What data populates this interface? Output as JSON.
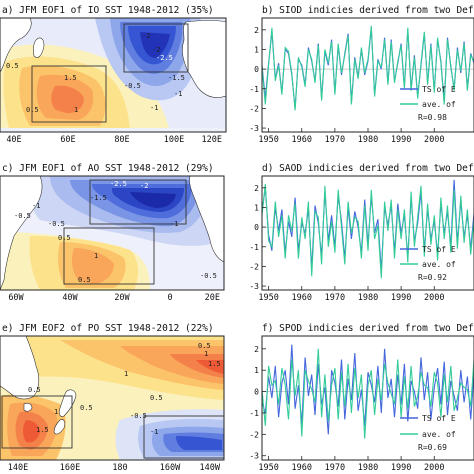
{
  "panels": [
    {
      "map_title": "a) JFM EOF1 of IO SST 1948-2012 (35%)",
      "map_xticks": [
        "40E",
        "60E",
        "80E",
        "100E",
        "120E"
      ],
      "map_labels": [
        "-2",
        "-2",
        "-2.5",
        "-1.5",
        "-1",
        "-1",
        "-0.5",
        "0.5",
        "1.5",
        "1",
        "0.5"
      ],
      "ts_title": "b) SIOD indicies derived from two Defs.",
      "legend": [
        "TS of E",
        "ave. of"
      ],
      "r_text": "R=0.98",
      "colors": [
        "#4466dd",
        "#33cc99"
      ]
    },
    {
      "map_title": "c) JFM EOF1 of AO SST 1948-2012 (29%)",
      "map_xticks": [
        "60W",
        "40W",
        "20W",
        "0",
        "20E"
      ],
      "map_labels": [
        "-2.5",
        "-2",
        "-1.5",
        "-1",
        "-0.5",
        "-0.5",
        "0.5",
        "1",
        "0.5",
        "-0.5",
        "-1"
      ],
      "ts_title": "d) SAOD indicies derived from two Defs.",
      "legend": [
        "TS of E",
        "ave. of"
      ],
      "r_text": "R=0.92",
      "colors": [
        "#4466dd",
        "#33cc99"
      ]
    },
    {
      "map_title": "e) JFM EOF2 of PO SST 1948-2012 (22%)",
      "map_xticks": [
        "140E",
        "160E",
        "180",
        "160W",
        "140W"
      ],
      "map_labels": [
        "0.5",
        "1",
        "1.5",
        "1",
        "1.5",
        "1",
        "0.5",
        "0.5",
        "0.5",
        "-1",
        "-0.5"
      ],
      "ts_title": "f) SPOD indicies derived from two Defs.",
      "legend": [
        "TS of E",
        "ave. of"
      ],
      "r_text": "R=0.69",
      "colors": [
        "#4466dd",
        "#33cc99"
      ]
    }
  ],
  "chart_data": [
    {
      "type": "line",
      "title": "b) SIOD indicies derived from two Defs.",
      "x": [
        1948,
        1949,
        1950,
        1951,
        1952,
        1953,
        1954,
        1955,
        1956,
        1957,
        1958,
        1959,
        1960,
        1961,
        1962,
        1963,
        1964,
        1965,
        1966,
        1967,
        1968,
        1969,
        1970,
        1971,
        1972,
        1973,
        1974,
        1975,
        1976,
        1977,
        1978,
        1979,
        1980,
        1981,
        1982,
        1983,
        1984,
        1985,
        1986,
        1987,
        1988,
        1989,
        1990,
        1991,
        1992,
        1993,
        1994,
        1995,
        1996,
        1997,
        1998,
        1999,
        2000,
        2001,
        2002,
        2003,
        2004,
        2005,
        2006,
        2007,
        2008,
        2009,
        2010,
        2011,
        2012
      ],
      "xticks": [
        1950,
        1960,
        1970,
        1980,
        1990,
        2000
      ],
      "yticks": [
        -3,
        -2,
        -1,
        0,
        1,
        2
      ],
      "ylim": [
        -3.2,
        2.6
      ],
      "xlim": [
        1948,
        2012
      ],
      "series": [
        {
          "name": "TS of E",
          "values": [
            0.2,
            -1.5,
            0.3,
            1.9,
            -0.5,
            0.3,
            -1.2,
            1.0,
            0.8,
            -0.3,
            -2.0,
            0.5,
            0.2,
            -0.8,
            1.1,
            0.4,
            -0.6,
            1.3,
            -1.5,
            0.9,
            0.2,
            1.5,
            -1.2,
            1.2,
            -0.3,
            0.8,
            1.8,
            -1.7,
            0.6,
            -0.4,
            1.0,
            -0.3,
            0.4,
            2.1,
            -1.3,
            0.5,
            0.0,
            1.6,
            -0.7,
            1.5,
            -0.6,
            0.3,
            1.3,
            -0.9,
            2.0,
            -1.0,
            0.7,
            -1.4,
            0.2,
            1.8,
            -0.7,
            1.3,
            -1.1,
            1.5,
            0.4,
            -1.7,
            1.6,
            0.1,
            -1.0,
            1.1,
            -0.2,
            1.4,
            -1.0,
            0.8,
            0.3
          ]
        },
        {
          "name": "ave. of",
          "values": [
            0.1,
            -1.8,
            0.2,
            2.1,
            -0.6,
            0.2,
            -1.3,
            1.1,
            0.9,
            -0.2,
            -2.1,
            0.6,
            0.1,
            -0.9,
            1.0,
            0.5,
            -0.7,
            1.2,
            -1.6,
            1.0,
            0.3,
            1.4,
            -1.3,
            1.3,
            -0.2,
            0.7,
            1.7,
            -1.8,
            0.5,
            -0.5,
            1.1,
            -0.2,
            0.5,
            2.2,
            -1.4,
            0.4,
            0.1,
            1.5,
            -0.8,
            1.4,
            -0.7,
            0.4,
            1.2,
            -1.0,
            2.1,
            -1.1,
            0.6,
            -1.5,
            0.3,
            1.9,
            -0.8,
            1.2,
            -1.2,
            1.6,
            0.3,
            -1.8,
            1.5,
            0.2,
            -1.1,
            1.0,
            -0.1,
            1.3,
            -1.1,
            0.7,
            0.4
          ]
        }
      ]
    },
    {
      "type": "line",
      "title": "d) SAOD indicies derived from two Defs.",
      "x": [
        1948,
        1949,
        1950,
        1951,
        1952,
        1953,
        1954,
        1955,
        1956,
        1957,
        1958,
        1959,
        1960,
        1961,
        1962,
        1963,
        1964,
        1965,
        1966,
        1967,
        1968,
        1969,
        1970,
        1971,
        1972,
        1973,
        1974,
        1975,
        1976,
        1977,
        1978,
        1979,
        1980,
        1981,
        1982,
        1983,
        1984,
        1985,
        1986,
        1987,
        1988,
        1989,
        1990,
        1991,
        1992,
        1993,
        1994,
        1995,
        1996,
        1997,
        1998,
        1999,
        2000,
        2001,
        2002,
        2003,
        2004,
        2005,
        2006,
        2007,
        2008,
        2009,
        2010,
        2011,
        2012
      ],
      "xticks": [
        1950,
        1960,
        1970,
        1980,
        1990,
        2000
      ],
      "yticks": [
        -3,
        -2,
        -1,
        0,
        1,
        2
      ],
      "ylim": [
        -3.2,
        2.6
      ],
      "xlim": [
        1948,
        2012
      ],
      "series": [
        {
          "name": "TS of E",
          "values": [
            0.8,
            2.0,
            -0.4,
            -1.2,
            1.0,
            -0.2,
            0.9,
            -1.3,
            0.3,
            -0.5,
            1.5,
            -1.2,
            0.2,
            -0.3,
            0.9,
            -2.1,
            1.1,
            0.2,
            -1.5,
            1.8,
            -0.7,
            0.6,
            -1.0,
            1.6,
            0.3,
            -1.6,
            1.0,
            -0.6,
            0.8,
            0.0,
            -1.3,
            1.4,
            -0.9,
            1.6,
            -0.3,
            0.4,
            -2.2,
            1.0,
            0.1,
            1.1,
            -1.3,
            1.2,
            -0.3,
            0.6,
            -1.5,
            1.5,
            -0.7,
            0.2,
            1.8,
            -1.2,
            0.9,
            -0.6,
            0.3,
            -1.4,
            1.2,
            -0.3,
            0.8,
            -1.0,
            2.4,
            -0.8,
            1.3,
            -0.5,
            0.6,
            -1.1,
            0.7
          ]
        },
        {
          "name": "ave. of",
          "values": [
            0.6,
            2.2,
            -0.7,
            -1.0,
            1.3,
            -0.5,
            0.6,
            -1.6,
            0.6,
            -0.2,
            1.2,
            -1.6,
            0.5,
            -0.6,
            1.3,
            -2.5,
            0.8,
            0.5,
            -1.9,
            2.1,
            -1.0,
            0.3,
            -1.3,
            1.9,
            0.0,
            -1.9,
            1.3,
            -0.3,
            0.5,
            0.3,
            -1.6,
            1.1,
            -1.2,
            1.9,
            -0.6,
            0.1,
            -2.6,
            1.3,
            -0.2,
            1.4,
            -1.6,
            0.9,
            -0.6,
            0.9,
            -1.8,
            1.8,
            -1.0,
            0.5,
            2.1,
            -1.5,
            1.2,
            -0.9,
            0.6,
            -1.7,
            1.5,
            -0.6,
            1.1,
            -1.3,
            1.9,
            -1.1,
            1.6,
            -0.8,
            0.9,
            -1.4,
            0.4
          ]
        }
      ]
    },
    {
      "type": "line",
      "title": "f) SPOD indicies derived from two Defs.",
      "x": [
        1948,
        1949,
        1950,
        1951,
        1952,
        1953,
        1954,
        1955,
        1956,
        1957,
        1958,
        1959,
        1960,
        1961,
        1962,
        1963,
        1964,
        1965,
        1966,
        1967,
        1968,
        1969,
        1970,
        1971,
        1972,
        1973,
        1974,
        1975,
        1976,
        1977,
        1978,
        1979,
        1980,
        1981,
        1982,
        1983,
        1984,
        1985,
        1986,
        1987,
        1988,
        1989,
        1990,
        1991,
        1992,
        1993,
        1994,
        1995,
        1996,
        1997,
        1998,
        1999,
        2000,
        2001,
        2002,
        2003,
        2004,
        2005,
        2006,
        2007,
        2008,
        2009,
        2010,
        2011,
        2012
      ],
      "xticks": [
        1950,
        1960,
        1970,
        1980,
        1990,
        2000
      ],
      "yticks": [
        -3,
        -2,
        -1,
        0,
        1,
        2
      ],
      "ylim": [
        -3.2,
        2.6
      ],
      "xlim": [
        1948,
        2012
      ],
      "series": [
        {
          "name": "TS of E",
          "values": [
            -0.5,
            -1.0,
            0.7,
            -0.3,
            1.2,
            -1.2,
            0.4,
            1.0,
            -0.6,
            2.2,
            -0.8,
            0.3,
            -1.5,
            1.6,
            -0.2,
            0.8,
            -1.1,
            1.3,
            -0.6,
            0.2,
            -2.0,
            1.0,
            0.4,
            -0.7,
            1.5,
            -1.3,
            0.6,
            -0.4,
            1.8,
            -0.9,
            0.1,
            -1.6,
            0.9,
            0.3,
            -0.5,
            1.2,
            -1.0,
            2.0,
            -0.3,
            0.6,
            -1.2,
            0.8,
            -0.6,
            1.3,
            -1.4,
            0.5,
            0.0,
            -0.8,
            1.6,
            -0.4,
            0.9,
            -1.3,
            0.2,
            1.1,
            -0.6,
            1.4,
            -1.1,
            0.5,
            -0.2,
            -0.9,
            1.0,
            -0.5,
            0.7,
            -1.3,
            0.9
          ]
        },
        {
          "name": "ave. of",
          "values": [
            0.1,
            -1.6,
            1.2,
            0.3,
            0.5,
            -0.6,
            1.1,
            0.3,
            -1.3,
            1.5,
            -0.2,
            1.0,
            -2.1,
            1.0,
            0.5,
            0.1,
            -0.5,
            2.0,
            -1.2,
            0.8,
            -1.4,
            0.3,
            1.1,
            -1.3,
            0.9,
            -0.7,
            1.3,
            -1.0,
            1.1,
            -0.3,
            0.8,
            -2.2,
            0.3,
            1.0,
            -1.1,
            0.6,
            -0.4,
            1.3,
            0.4,
            -0.1,
            -0.6,
            1.5,
            -1.2,
            0.7,
            -0.8,
            1.2,
            -0.7,
            -0.2,
            0.9,
            0.3,
            0.2,
            -0.7,
            0.9,
            0.4,
            -1.2,
            0.8,
            -0.5,
            1.2,
            -0.9,
            -0.3,
            0.4,
            0.2,
            0.1,
            -0.7,
            1.5
          ]
        }
      ]
    }
  ]
}
